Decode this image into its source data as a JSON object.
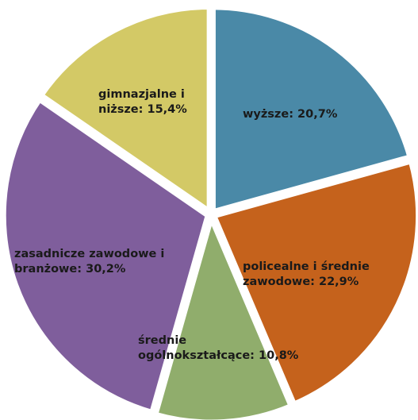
{
  "chart_data": {
    "type": "pie",
    "title": "",
    "slices": [
      {
        "label": "wyższe",
        "value": 20.7,
        "label_text": [
          "wyższe: 20,7%"
        ],
        "color": "#4a89a7"
      },
      {
        "label": "policealne i średnie zawodowe",
        "value": 22.9,
        "label_text": [
          "policealne i średnie",
          "zawodowe: 22,9%"
        ],
        "color": "#c5621c"
      },
      {
        "label": "średnie ogólnokształcące",
        "value": 10.8,
        "label_text": [
          "średnie",
          "ogólnokształcące: 10,8%"
        ],
        "color": "#90ad6c"
      },
      {
        "label": "zasadnicze zawodowe i branżowe",
        "value": 30.2,
        "label_text": [
          "zasadnicze zawodowe i",
          "branżowe: 30,2%"
        ],
        "color": "#7f5e9c"
      },
      {
        "label": "gimnazjalne i niższe",
        "value": 15.4,
        "label_text": [
          "gimnazjalne i",
          "niższe: 15,4%"
        ],
        "color": "#d3c966"
      }
    ],
    "start_angle_deg": 0,
    "direction": "clockwise",
    "exploded": true,
    "legend": "none"
  }
}
